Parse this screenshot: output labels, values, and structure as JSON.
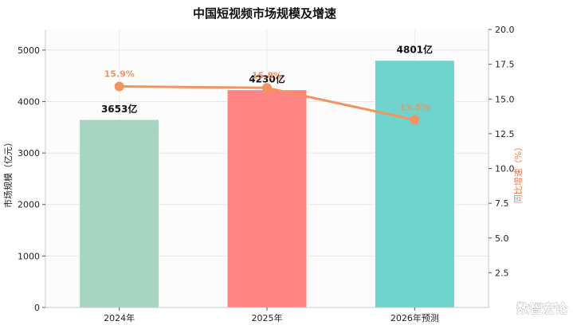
{
  "chart_data": {
    "type": "bar",
    "title": "中国短视频市场规模及增速",
    "categories": [
      "2024年",
      "2025年",
      "2026年预测"
    ],
    "series": [
      {
        "type": "bar",
        "values": [
          3653,
          4230,
          4801
        ],
        "labels": [
          "3653亿",
          "4230亿",
          "4801亿"
        ],
        "colors": [
          "#a8d5c2",
          "#ff8585",
          "#6ed3cd"
        ]
      },
      {
        "type": "line",
        "axis": "right",
        "values": [
          15.9,
          15.8,
          13.5
        ],
        "labels": [
          "15.9%",
          "15.8%",
          "13.5%"
        ],
        "color": "#f4935e"
      }
    ],
    "ylabel": "市场规模（亿元）",
    "y2label": "同比增速（%）",
    "ylim": [
      0,
      5400
    ],
    "y2lim": [
      0,
      20.0
    ],
    "yticks": [
      "0",
      "1000",
      "2000",
      "3000",
      "4000",
      "5000"
    ],
    "y2ticks": [
      "2.5",
      "5.0",
      "7.5",
      "10.0",
      "12.5",
      "15.0",
      "17.5",
      "20.0"
    ],
    "grid": true
  },
  "watermark": "数智宏论"
}
